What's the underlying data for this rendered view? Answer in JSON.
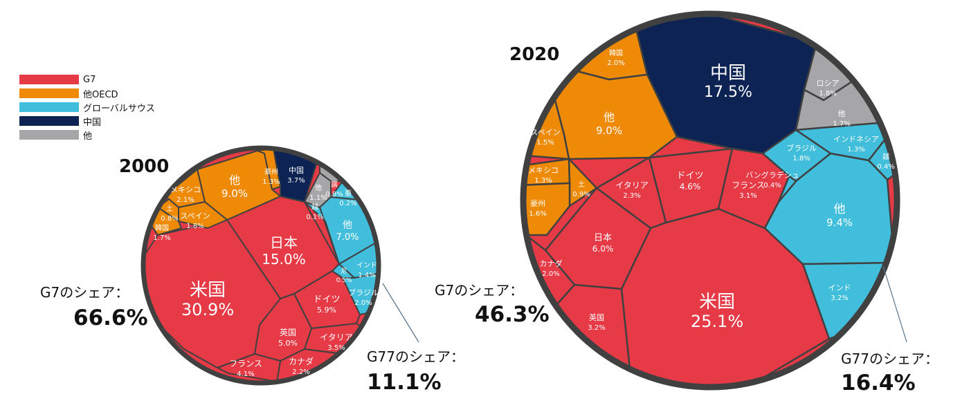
{
  "colors": {
    "G7": "#e63a46",
    "OECD": "#ef8a06",
    "GS": "#40bedc",
    "CN": "#0c2354",
    "OTHER": "#a6a6a9",
    "border": "#404040"
  },
  "legend": [
    {
      "group": "G7",
      "label": "G7"
    },
    {
      "group": "OECD",
      "label": "他OECD"
    },
    {
      "group": "GS",
      "label": "グローバルサウス"
    },
    {
      "group": "CN",
      "label": "中国"
    },
    {
      "group": "OTHER",
      "label": "他"
    }
  ],
  "chart_data": [
    {
      "type": "voronoi-treemap",
      "year": "2000",
      "shares": [
        {
          "label": "G7のシェア：",
          "value": "66.6%"
        },
        {
          "label": "G77のシェア：",
          "value": "11.1%"
        }
      ],
      "cells": [
        {
          "name": "米国",
          "value": 30.9,
          "pct": "30.9%",
          "group": "G7"
        },
        {
          "name": "日本",
          "value": 15.0,
          "pct": "15.0%",
          "group": "G7"
        },
        {
          "name": "ドイツ",
          "value": 5.9,
          "pct": "5.9%",
          "group": "G7"
        },
        {
          "name": "英国",
          "value": 5.0,
          "pct": "5.0%",
          "group": "G7"
        },
        {
          "name": "イタリア",
          "value": 3.5,
          "pct": "3.5%",
          "group": "G7"
        },
        {
          "name": "カナダ",
          "value": 2.2,
          "pct": "2.2%",
          "group": "G7"
        },
        {
          "name": "フランス",
          "value": 4.1,
          "pct": "4.1%",
          "group": "G7"
        },
        {
          "name": "他",
          "value": 9.0,
          "pct": "9.0%",
          "group": "OECD"
        },
        {
          "name": "メキシコ",
          "value": 2.1,
          "pct": "2.1%",
          "group": "OECD"
        },
        {
          "name": "豪州",
          "value": 1.3,
          "pct": "1.3%",
          "group": "OECD"
        },
        {
          "name": "スペイン",
          "value": 1.8,
          "pct": "1.8%",
          "group": "OECD"
        },
        {
          "name": "韓国",
          "value": 1.7,
          "pct": "1.7%",
          "group": "OECD"
        },
        {
          "name": "土",
          "value": 0.8,
          "pct": "0.8%",
          "group": "OECD"
        },
        {
          "name": "中国",
          "value": 3.7,
          "pct": "3.7%",
          "group": "CN"
        },
        {
          "name": "他",
          "value": 1.1,
          "pct": "1.1%",
          "group": "OTHER"
        },
        {
          "name": "露",
          "value": 0.8,
          "pct": "0.8%",
          "group": "OTHER"
        },
        {
          "name": "他",
          "value": 7.0,
          "pct": "7.0%",
          "group": "GS"
        },
        {
          "name": "インド",
          "value": 1.4,
          "pct": "1.4%",
          "group": "GS"
        },
        {
          "name": "ブラジル",
          "value": 2.0,
          "pct": "2.0%",
          "group": "GS"
        },
        {
          "name": "尼",
          "value": 0.5,
          "pct": "0.5%",
          "group": "GS"
        },
        {
          "name": "越",
          "value": 0.1,
          "pct": "0.1%",
          "group": "GS"
        },
        {
          "name": "亜",
          "value": 0.2,
          "pct": "0.2%",
          "group": "GS"
        }
      ]
    },
    {
      "type": "voronoi-treemap",
      "year": "2020",
      "shares": [
        {
          "label": "G7のシェア：",
          "value": "46.3%"
        },
        {
          "label": "G77のシェア：",
          "value": "16.4%"
        }
      ],
      "cells": [
        {
          "name": "中国",
          "value": 17.5,
          "pct": "17.5%",
          "group": "CN"
        },
        {
          "name": "米国",
          "value": 25.1,
          "pct": "25.1%",
          "group": "G7"
        },
        {
          "name": "日本",
          "value": 6.0,
          "pct": "6.0%",
          "group": "G7"
        },
        {
          "name": "ドイツ",
          "value": 4.6,
          "pct": "4.6%",
          "group": "G7"
        },
        {
          "name": "イタリア",
          "value": 2.3,
          "pct": "2.3%",
          "group": "G7"
        },
        {
          "name": "フランス",
          "value": 3.1,
          "pct": "3.1%",
          "group": "G7"
        },
        {
          "name": "カナダ",
          "value": 2.0,
          "pct": "2.0%",
          "group": "G7"
        },
        {
          "name": "英国",
          "value": 3.2,
          "pct": "3.2%",
          "group": "G7"
        },
        {
          "name": "韓国",
          "value": 2.0,
          "pct": "2.0%",
          "group": "OECD"
        },
        {
          "name": "他",
          "value": 9.0,
          "pct": "9.0%",
          "group": "OECD"
        },
        {
          "name": "スペイン",
          "value": 1.5,
          "pct": "1.5%",
          "group": "OECD"
        },
        {
          "name": "メキシコ",
          "value": 1.3,
          "pct": "1.3%",
          "group": "OECD"
        },
        {
          "name": "土",
          "value": 0.9,
          "pct": "0.9%",
          "group": "OECD"
        },
        {
          "name": "豪州",
          "value": 1.6,
          "pct": "1.6%",
          "group": "OECD"
        },
        {
          "name": "ロシア",
          "value": 1.8,
          "pct": "1.8%",
          "group": "OTHER"
        },
        {
          "name": "他",
          "value": 1.7,
          "pct": "1.7%",
          "group": "OTHER"
        },
        {
          "name": "インドネシア",
          "value": 1.3,
          "pct": "1.3%",
          "group": "GS"
        },
        {
          "name": "ブラジル",
          "value": 1.8,
          "pct": "1.8%",
          "group": "GS"
        },
        {
          "name": "越",
          "value": 0.4,
          "pct": "0.4%",
          "group": "GS"
        },
        {
          "name": "他",
          "value": 9.4,
          "pct": "9.4%",
          "group": "GS"
        },
        {
          "name": "インド",
          "value": 3.2,
          "pct": "3.2%",
          "group": "GS"
        },
        {
          "name": "バングラデシュ",
          "value": 0.4,
          "pct": "0.4%",
          "group": "GS"
        }
      ]
    }
  ]
}
